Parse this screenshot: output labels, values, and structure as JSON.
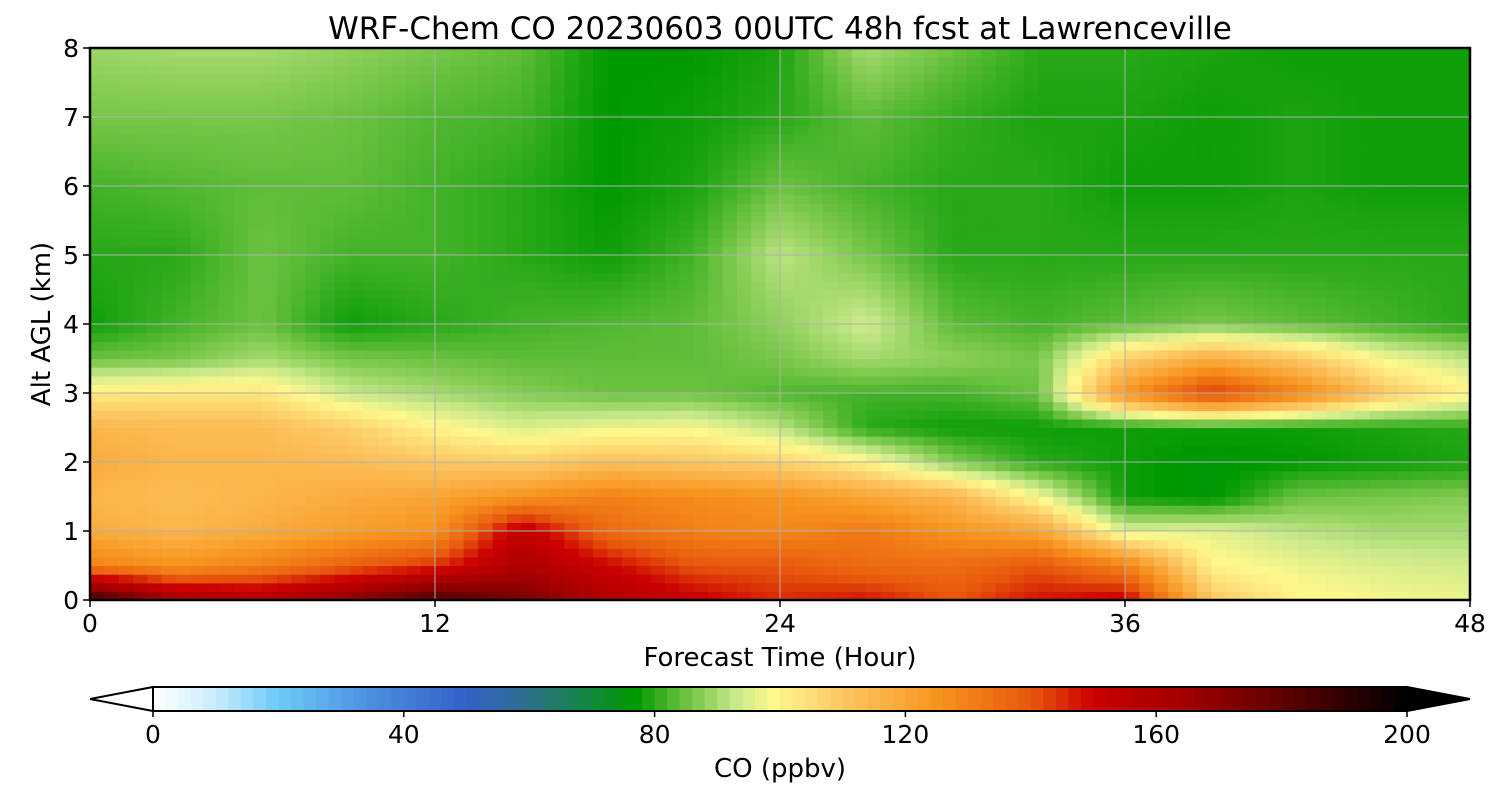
{
  "chart_data": {
    "type": "heatmap",
    "title": "WRF-Chem CO  20230603 00UTC 48h fcst at Lawrenceville",
    "xlabel": "Forecast Time (Hour)",
    "ylabel": "Alt AGL (km)",
    "xlim": [
      0,
      48
    ],
    "ylim": [
      0,
      8
    ],
    "xticks": [
      0,
      12,
      24,
      36,
      48
    ],
    "yticks": [
      0,
      1,
      2,
      3,
      4,
      5,
      6,
      7,
      8
    ],
    "grid": true,
    "x": [
      0,
      3,
      6,
      9,
      12,
      15,
      18,
      21,
      24,
      27,
      30,
      33,
      36,
      39,
      42,
      45,
      48
    ],
    "y": [
      0,
      0.5,
      1,
      1.5,
      2,
      2.5,
      3,
      3.5,
      4,
      5,
      6,
      7,
      8
    ],
    "z": [
      [
        190,
        165,
        160,
        170,
        185,
        175,
        160,
        152,
        145,
        148,
        140,
        148,
        152,
        110,
        100,
        98,
        97
      ],
      [
        130,
        125,
        130,
        138,
        145,
        160,
        150,
        140,
        140,
        135,
        135,
        140,
        130,
        100,
        97,
        95,
        94
      ],
      [
        118,
        115,
        118,
        122,
        125,
        155,
        135,
        130,
        128,
        132,
        125,
        120,
        95,
        96,
        92,
        90,
        90
      ],
      [
        115,
        113,
        115,
        118,
        120,
        125,
        130,
        127,
        125,
        120,
        115,
        98,
        78,
        76,
        85,
        86,
        87
      ],
      [
        118,
        115,
        115,
        113,
        110,
        108,
        112,
        110,
        107,
        100,
        87,
        80,
        78,
        76,
        77,
        78,
        79
      ],
      [
        115,
        113,
        113,
        108,
        100,
        95,
        97,
        98,
        92,
        80,
        78,
        78,
        78,
        78,
        78,
        79,
        80
      ],
      [
        102,
        103,
        103,
        93,
        90,
        87,
        85,
        85,
        83,
        82,
        82,
        85,
        125,
        145,
        130,
        110,
        100
      ],
      [
        85,
        86,
        90,
        86,
        85,
        84,
        84,
        84,
        86,
        90,
        88,
        86,
        108,
        118,
        110,
        98,
        92
      ],
      [
        78,
        82,
        85,
        78,
        80,
        82,
        83,
        84,
        88,
        94,
        84,
        82,
        84,
        86,
        84,
        82,
        80
      ],
      [
        80,
        80,
        85,
        82,
        82,
        80,
        78,
        82,
        92,
        86,
        80,
        80,
        80,
        80,
        80,
        80,
        80
      ],
      [
        82,
        83,
        84,
        84,
        82,
        80,
        77,
        79,
        85,
        82,
        80,
        80,
        78,
        78,
        79,
        78,
        78
      ],
      [
        86,
        86,
        86,
        85,
        83,
        82,
        77,
        78,
        80,
        84,
        81,
        79,
        79,
        78,
        79,
        78,
        78
      ],
      [
        89,
        90,
        90,
        88,
        86,
        84,
        77,
        77,
        79,
        90,
        85,
        80,
        80,
        79,
        78,
        78,
        78
      ]
    ],
    "colorbar": {
      "label": "CO  (ppbv)",
      "ticks": [
        0,
        40,
        80,
        120,
        160,
        200
      ],
      "min": 0,
      "max": 200,
      "extend": "both",
      "stops": [
        {
          "v": 0,
          "c": "#ffffff"
        },
        {
          "v": 10,
          "c": "#c8ecfa"
        },
        {
          "v": 20,
          "c": "#6ccaf7"
        },
        {
          "v": 35,
          "c": "#4a8ee0"
        },
        {
          "v": 50,
          "c": "#3460c8"
        },
        {
          "v": 60,
          "c": "#2c708a"
        },
        {
          "v": 70,
          "c": "#108a3a"
        },
        {
          "v": 77,
          "c": "#009900"
        },
        {
          "v": 85,
          "c": "#6cc240"
        },
        {
          "v": 93,
          "c": "#c8e88a"
        },
        {
          "v": 99,
          "c": "#fff88c"
        },
        {
          "v": 110,
          "c": "#fcc662"
        },
        {
          "v": 125,
          "c": "#f7941e"
        },
        {
          "v": 140,
          "c": "#e8580c"
        },
        {
          "v": 150,
          "c": "#cc0000"
        },
        {
          "v": 165,
          "c": "#a00000"
        },
        {
          "v": 180,
          "c": "#600000"
        },
        {
          "v": 200,
          "c": "#000000"
        }
      ]
    }
  }
}
